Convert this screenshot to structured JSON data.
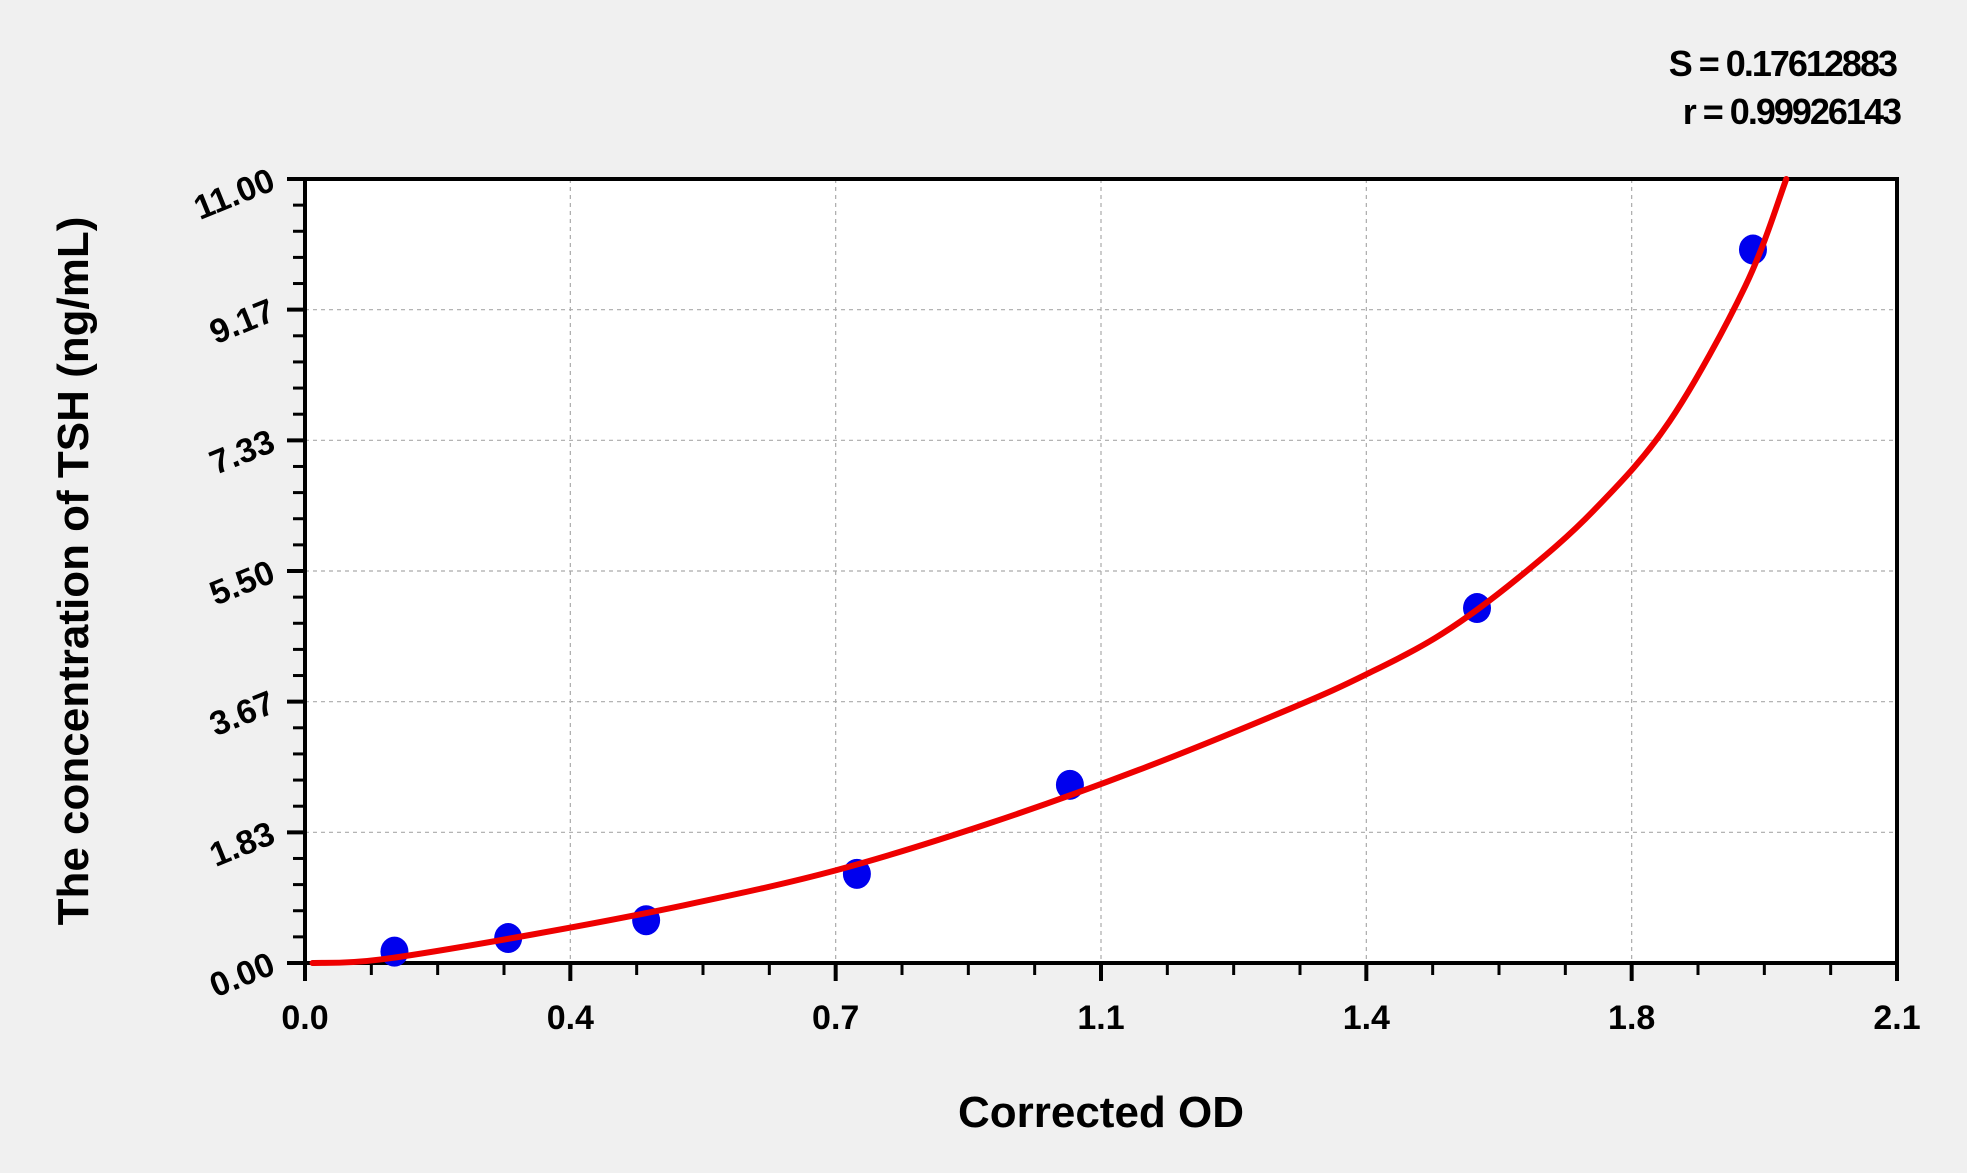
{
  "chart_data": {
    "type": "scatter",
    "xlabel": "Corrected OD",
    "ylabel": "The concentration of TSH (ng/mL)",
    "xlim": [
      0.0,
      2.1
    ],
    "ylim": [
      0.0,
      11.0
    ],
    "xticks": [
      "0.0",
      "0.4",
      "0.7",
      "1.1",
      "1.4",
      "1.8",
      "2.1"
    ],
    "yticks": [
      "0.00",
      "1.83",
      "3.67",
      "5.50",
      "7.33",
      "9.17",
      "11.00"
    ],
    "grid": true,
    "annotations": [
      "S = 0.17612883",
      "r = 0.99926143"
    ],
    "points": {
      "x": [
        0.118,
        0.268,
        0.45,
        0.728,
        1.009,
        1.546,
        1.91
      ],
      "y": [
        0.16,
        0.35,
        0.6,
        1.25,
        2.5,
        4.98,
        10.01
      ]
    },
    "fit_curve": {
      "x": [
        0.01,
        0.1,
        0.3,
        0.5,
        0.7,
        0.9,
        1.1,
        1.3,
        1.4,
        1.5,
        1.6,
        1.7,
        1.8,
        1.9,
        1.954
      ],
      "y": [
        0.0,
        0.05,
        0.4,
        0.81,
        1.3,
        1.95,
        2.71,
        3.57,
        4.05,
        4.62,
        5.4,
        6.35,
        7.6,
        9.5,
        11.0
      ]
    },
    "colors": {
      "points": "#0000ee",
      "curve": "#ee0000",
      "background": "#f0f0f0",
      "plot": "#ffffff"
    }
  }
}
